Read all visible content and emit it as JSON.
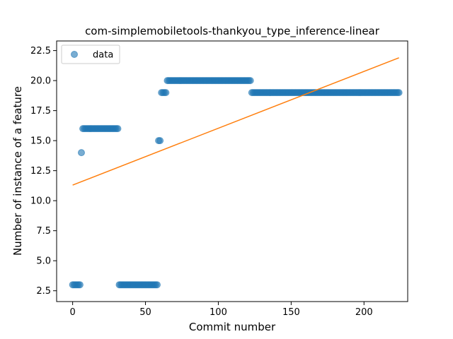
{
  "chart_data": {
    "type": "scatter",
    "title": "com-simplemobiletools-thankyou_type_inference-linear",
    "xlabel": "Commit number",
    "ylabel": "Number of instance of a feature",
    "xlim": [
      -11,
      230
    ],
    "ylim": [
      1.6,
      23.3
    ],
    "xticks": [
      0,
      50,
      100,
      150,
      200
    ],
    "yticks": [
      2.5,
      5.0,
      7.5,
      10.0,
      12.5,
      15.0,
      17.5,
      20.0,
      22.5
    ],
    "legend": {
      "placement": "top-left",
      "entries": [
        "data"
      ]
    },
    "colors": {
      "data": "#1f77b4",
      "fit": "#ff7f0e"
    },
    "segments": [
      {
        "x_start": 0,
        "x_end": 5,
        "y": 3
      },
      {
        "x_start": 6,
        "x_end": 6,
        "y": 14
      },
      {
        "x_start": 7,
        "x_end": 31,
        "y": 16
      },
      {
        "x_start": 32,
        "x_end": 58,
        "y": 3
      },
      {
        "x_start": 59,
        "x_end": 60,
        "y": 15
      },
      {
        "x_start": 61,
        "x_end": 64,
        "y": 19
      },
      {
        "x_start": 65,
        "x_end": 122,
        "y": 20
      },
      {
        "x_start": 123,
        "x_end": 224,
        "y": 19
      }
    ],
    "fit_line": {
      "x": [
        0,
        224
      ],
      "y": [
        11.3,
        21.9
      ]
    },
    "grid": false
  }
}
